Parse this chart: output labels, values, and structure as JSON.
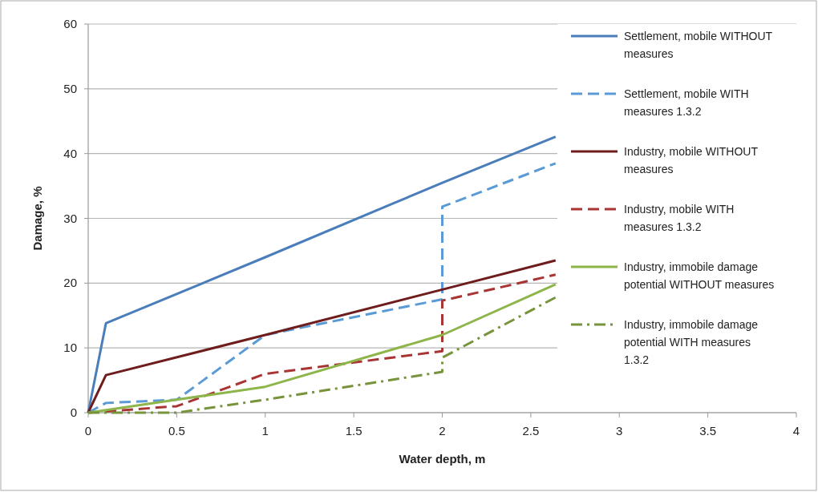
{
  "chart_data": {
    "type": "line",
    "xlabel": "Water depth, m",
    "ylabel": "Damage, %",
    "xlim": [
      0,
      4
    ],
    "xticks": [
      0,
      0.5,
      1,
      1.5,
      2,
      2.5,
      3,
      3.5,
      4
    ],
    "ylim": [
      0,
      60
    ],
    "yticks": [
      0,
      10,
      20,
      30,
      40,
      50,
      60
    ],
    "grid": "y",
    "legend": "right",
    "series": [
      {
        "name": "Settlement, mobile WITHOUT measures",
        "color": "#4a7ebb",
        "line_style": "solid",
        "x": [
          0,
          0.1,
          1,
          2,
          2.64
        ],
        "values": [
          0,
          13.8,
          24,
          35.5,
          42.6
        ]
      },
      {
        "name": "Settlement, mobile WITH measures 1.3.2",
        "color": "#5b9bd5",
        "line_style": "dashed",
        "x": [
          0,
          0.1,
          0.5,
          1,
          2,
          2,
          2.64
        ],
        "values": [
          0,
          1.5,
          2,
          12,
          17.5,
          31.8,
          38.5
        ]
      },
      {
        "name": "Industry, mobile WITHOUT measures",
        "color": "#6e1c1c",
        "line_style": "solid",
        "x": [
          0,
          0.1,
          1,
          2,
          2.64
        ],
        "values": [
          0,
          5.8,
          12,
          19,
          23.5
        ]
      },
      {
        "name": "Industry, mobile WITH measures 1.3.2",
        "color": "#a83434",
        "line_style": "dashed",
        "x": [
          0,
          0.5,
          1,
          2,
          2,
          2.64
        ],
        "values": [
          0,
          1,
          6,
          9.5,
          17.3,
          21.3
        ]
      },
      {
        "name": "Industry, immobile damage potential WITHOUT measures",
        "color": "#8db54a",
        "line_style": "solid",
        "x": [
          0,
          0.5,
          1,
          2,
          2.64
        ],
        "values": [
          0,
          2,
          4,
          12,
          19.8
        ]
      },
      {
        "name": "Industry, immobile damage potential WITH measures 1.3.2",
        "color": "#77933c",
        "line_style": "dotted",
        "x": [
          0,
          0.5,
          1,
          2,
          2,
          2.64
        ],
        "values": [
          0,
          0,
          2,
          6.3,
          8.5,
          17.8
        ]
      }
    ]
  }
}
